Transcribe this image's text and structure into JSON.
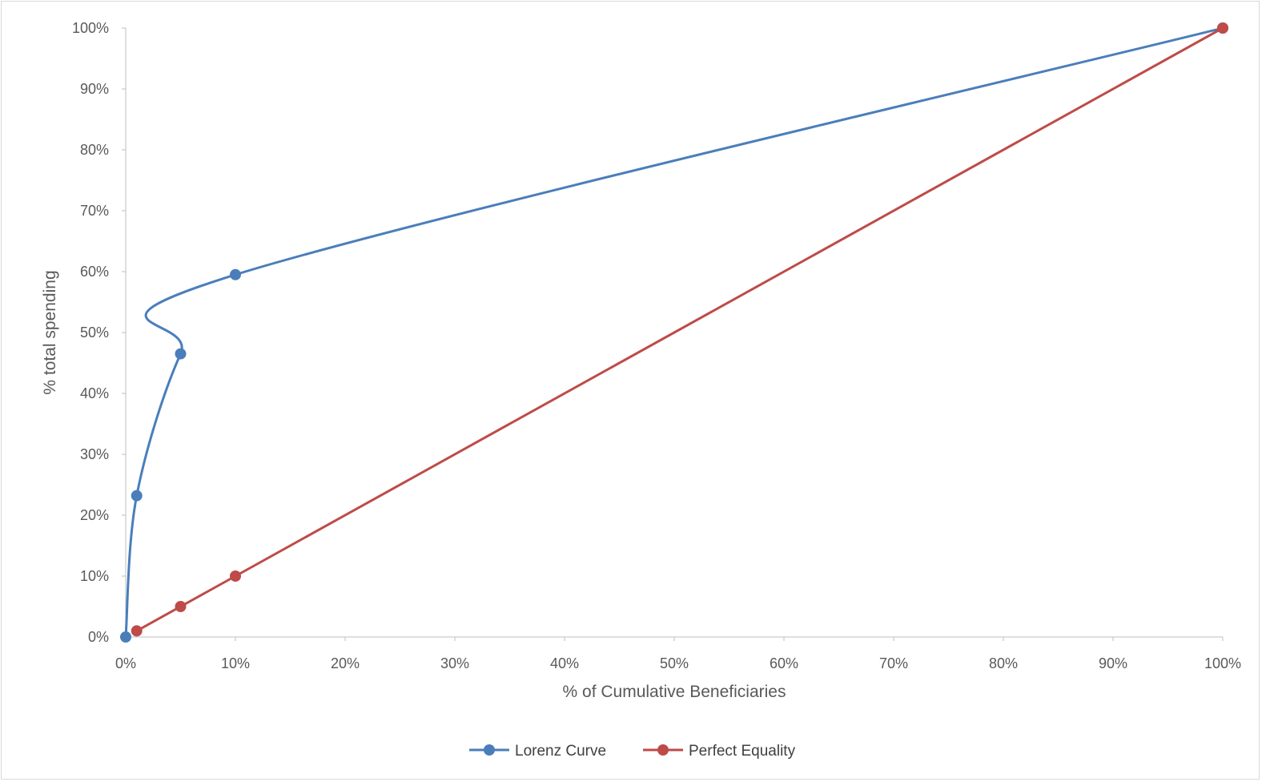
{
  "chart_data": {
    "type": "line",
    "title": "",
    "xlabel": "% of Cumulative Beneficiaries",
    "ylabel": "% total spending",
    "xlim": [
      0,
      100
    ],
    "ylim": [
      0,
      100
    ],
    "x_ticks": [
      "0%",
      "10%",
      "20%",
      "30%",
      "40%",
      "50%",
      "60%",
      "70%",
      "80%",
      "90%",
      "100%"
    ],
    "y_ticks": [
      "0%",
      "10%",
      "20%",
      "30%",
      "40%",
      "50%",
      "60%",
      "70%",
      "80%",
      "90%",
      "100%"
    ],
    "grid": false,
    "legend_position": "bottom",
    "series": [
      {
        "name": "Lorenz Curve",
        "color": "#4a7ebb",
        "smooth": true,
        "points": [
          {
            "x": 0,
            "y": 0
          },
          {
            "x": 1,
            "y": 23.2
          },
          {
            "x": 5,
            "y": 46.5
          },
          {
            "x": 10,
            "y": 59.5
          },
          {
            "x": 100,
            "y": 100
          }
        ]
      },
      {
        "name": "Perfect Equality",
        "color": "#be4b48",
        "smooth": false,
        "points": [
          {
            "x": 1,
            "y": 1
          },
          {
            "x": 5,
            "y": 5
          },
          {
            "x": 10,
            "y": 10
          },
          {
            "x": 100,
            "y": 100
          }
        ]
      }
    ]
  }
}
